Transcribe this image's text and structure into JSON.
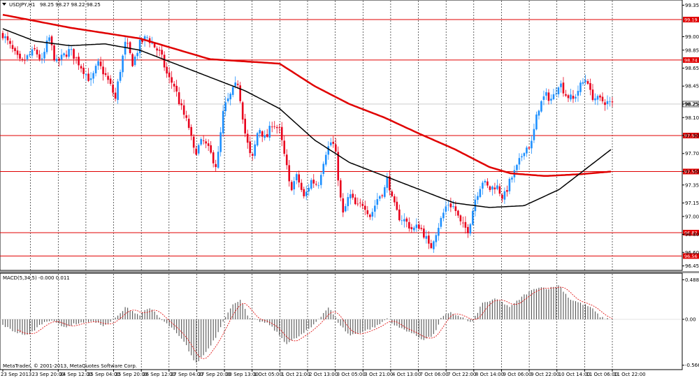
{
  "window": {
    "symbol_label": "USDJPY,H1",
    "ohlc_label": "98.25 98.27 98.22 98.25",
    "indicator_label": "MACD(5,34,5) -0.000 0.011",
    "copyright": "MetaTrader, © 2001-2013, MetaQuotes Software Corp."
  },
  "colors": {
    "background": "#ffffff",
    "bull_candle": "#1e90ff",
    "bear_candle": "#e8001c",
    "sma_slow": "#e00000",
    "sma_fast": "#000000",
    "level_line": "#e00000",
    "macd_hist": "#555555",
    "macd_signal": "#e00000",
    "grid": "#000000"
  },
  "chart_data": [
    {
      "type": "candlestick",
      "symbol": "USDJPY",
      "timeframe": "H1",
      "ylim": [
        96.4,
        99.4
      ],
      "y_ticks": [
        "99.35",
        "99.00",
        "98.85",
        "98.65",
        "98.45",
        "98.25",
        "98.10",
        "97.90",
        "97.70",
        "97.50",
        "97.35",
        "97.15",
        "97.00",
        "96.80",
        "96.60",
        "96.45"
      ],
      "x_ticks": [
        "23 Sep 2013",
        "23 Sep 20:00",
        "24 Sep 12:00",
        "25 Sep 04:00",
        "25 Sep 20:00",
        "26 Sep 12:00",
        "27 Sep 04:00",
        "27 Sep 20:00",
        "30 Sep 13:00",
        "1 Oct 05:00",
        "1 Oct 21:00",
        "2 Oct 13:00",
        "3 Oct 05:00",
        "3 Oct 21:00",
        "4 Oct 13:00",
        "7 Oct 06:00",
        "7 Oct 22:00",
        "8 Oct 14:00",
        "9 Oct 06:00",
        "9 Oct 22:00",
        "10 Oct 14:00",
        "11 Oct 06:00",
        "11 Oct 22:00"
      ],
      "horizontal_levels": [
        {
          "label": "99.19",
          "value": 99.19
        },
        {
          "label": "98.74",
          "value": 98.74
        },
        {
          "label": "97.90",
          "value": 97.9
        },
        {
          "label": "97.50",
          "value": 97.5
        },
        {
          "label": "96.82",
          "value": 96.82
        },
        {
          "label": "96.56",
          "value": 96.56
        }
      ],
      "current_price_label": "98.25",
      "current_price": 98.25,
      "close_path": [
        [
          0,
          99.08
        ],
        [
          10,
          98.95
        ],
        [
          20,
          98.82
        ],
        [
          30,
          98.7
        ],
        [
          40,
          98.78
        ],
        [
          50,
          98.85
        ],
        [
          60,
          98.72
        ],
        [
          70,
          99.0
        ],
        [
          80,
          98.7
        ],
        [
          90,
          98.78
        ],
        [
          100,
          98.85
        ],
        [
          110,
          98.74
        ],
        [
          120,
          98.62
        ],
        [
          130,
          98.5
        ],
        [
          140,
          98.7
        ],
        [
          150,
          98.58
        ],
        [
          160,
          98.42
        ],
        [
          165,
          98.3
        ],
        [
          170,
          98.55
        ],
        [
          180,
          98.95
        ],
        [
          190,
          98.7
        ],
        [
          200,
          98.92
        ],
        [
          210,
          99.0
        ],
        [
          220,
          98.9
        ],
        [
          230,
          98.8
        ],
        [
          240,
          98.55
        ],
        [
          250,
          98.45
        ],
        [
          255,
          98.3
        ],
        [
          262,
          98.15
        ],
        [
          270,
          98.0
        ],
        [
          278,
          97.7
        ],
        [
          290,
          97.85
        ],
        [
          300,
          97.72
        ],
        [
          310,
          97.55
        ],
        [
          320,
          98.2
        ],
        [
          330,
          98.35
        ],
        [
          340,
          98.5
        ],
        [
          345,
          98.25
        ],
        [
          350,
          97.95
        ],
        [
          360,
          97.6
        ],
        [
          370,
          98.0
        ],
        [
          380,
          97.85
        ],
        [
          390,
          98.05
        ],
        [
          400,
          97.95
        ],
        [
          410,
          97.55
        ],
        [
          415,
          97.3
        ],
        [
          425,
          97.45
        ],
        [
          435,
          97.2
        ],
        [
          445,
          97.4
        ],
        [
          455,
          97.35
        ],
        [
          465,
          97.7
        ],
        [
          475,
          97.85
        ],
        [
          480,
          97.7
        ],
        [
          490,
          97.0
        ],
        [
          500,
          97.25
        ],
        [
          510,
          97.1
        ],
        [
          520,
          97.15
        ],
        [
          530,
          97.0
        ],
        [
          540,
          97.2
        ],
        [
          550,
          97.3
        ],
        [
          555,
          97.45
        ],
        [
          560,
          97.2
        ],
        [
          570,
          97.0
        ],
        [
          580,
          96.95
        ],
        [
          590,
          96.85
        ],
        [
          600,
          96.9
        ],
        [
          610,
          96.75
        ],
        [
          615,
          96.62
        ],
        [
          620,
          96.75
        ],
        [
          630,
          96.95
        ],
        [
          640,
          97.15
        ],
        [
          650,
          97.1
        ],
        [
          660,
          96.9
        ],
        [
          670,
          96.85
        ],
        [
          680,
          97.2
        ],
        [
          690,
          97.4
        ],
        [
          700,
          97.3
        ],
        [
          710,
          97.35
        ],
        [
          720,
          97.2
        ],
        [
          730,
          97.4
        ],
        [
          740,
          97.55
        ],
        [
          750,
          97.75
        ],
        [
          760,
          97.8
        ],
        [
          770,
          98.2
        ],
        [
          780,
          98.35
        ],
        [
          790,
          98.3
        ],
        [
          800,
          98.5
        ],
        [
          810,
          98.35
        ],
        [
          820,
          98.3
        ],
        [
          830,
          98.45
        ],
        [
          840,
          98.55
        ],
        [
          845,
          98.35
        ],
        [
          855,
          98.3
        ],
        [
          865,
          98.28
        ],
        [
          875,
          98.25
        ]
      ],
      "sma_fast": [
        [
          0,
          99.1
        ],
        [
          50,
          98.95
        ],
        [
          100,
          98.9
        ],
        [
          150,
          98.92
        ],
        [
          200,
          98.85
        ],
        [
          250,
          98.7
        ],
        [
          300,
          98.55
        ],
        [
          350,
          98.4
        ],
        [
          400,
          98.2
        ],
        [
          450,
          97.85
        ],
        [
          500,
          97.6
        ],
        [
          550,
          97.45
        ],
        [
          600,
          97.3
        ],
        [
          650,
          97.15
        ],
        [
          700,
          97.1
        ],
        [
          750,
          97.12
        ],
        [
          800,
          97.3
        ],
        [
          850,
          97.6
        ],
        [
          875,
          97.75
        ]
      ],
      "sma_slow": [
        [
          0,
          99.25
        ],
        [
          100,
          99.1
        ],
        [
          200,
          98.98
        ],
        [
          300,
          98.75
        ],
        [
          400,
          98.7
        ],
        [
          450,
          98.45
        ],
        [
          500,
          98.25
        ],
        [
          550,
          98.1
        ],
        [
          600,
          97.92
        ],
        [
          650,
          97.75
        ],
        [
          700,
          97.55
        ],
        [
          730,
          97.48
        ],
        [
          780,
          97.45
        ],
        [
          830,
          97.47
        ],
        [
          875,
          97.5
        ]
      ]
    },
    {
      "type": "bar",
      "name": "MACD(5,34,5)",
      "ylim": [
        -0.62,
        0.56
      ],
      "y_ticks": [
        "0.488",
        "0.00",
        "-0.566"
      ],
      "histogram_path": [
        [
          0,
          -0.05
        ],
        [
          20,
          -0.15
        ],
        [
          40,
          -0.2
        ],
        [
          60,
          -0.05
        ],
        [
          75,
          0.0
        ],
        [
          90,
          -0.1
        ],
        [
          110,
          -0.05
        ],
        [
          130,
          -0.02
        ],
        [
          150,
          -0.08
        ],
        [
          170,
          0.05
        ],
        [
          180,
          0.15
        ],
        [
          190,
          0.1
        ],
        [
          200,
          0.05
        ],
        [
          210,
          0.14
        ],
        [
          220,
          0.1
        ],
        [
          230,
          0.0
        ],
        [
          245,
          -0.1
        ],
        [
          265,
          -0.3
        ],
        [
          280,
          -0.55
        ],
        [
          295,
          -0.4
        ],
        [
          310,
          -0.2
        ],
        [
          320,
          0.0
        ],
        [
          335,
          0.2
        ],
        [
          345,
          0.25
        ],
        [
          355,
          0.02
        ],
        [
          370,
          -0.02
        ],
        [
          385,
          -0.06
        ],
        [
          400,
          -0.2
        ],
        [
          410,
          -0.3
        ],
        [
          420,
          -0.25
        ],
        [
          430,
          -0.2
        ],
        [
          445,
          -0.1
        ],
        [
          460,
          0.05
        ],
        [
          470,
          0.15
        ],
        [
          485,
          -0.05
        ],
        [
          500,
          -0.2
        ],
        [
          520,
          -0.15
        ],
        [
          540,
          -0.08
        ],
        [
          555,
          0.02
        ],
        [
          565,
          -0.08
        ],
        [
          585,
          -0.15
        ],
        [
          605,
          -0.25
        ],
        [
          620,
          -0.2
        ],
        [
          632,
          0.03
        ],
        [
          645,
          0.08
        ],
        [
          660,
          0.03
        ],
        [
          675,
          -0.05
        ],
        [
          690,
          0.2
        ],
        [
          710,
          0.25
        ],
        [
          730,
          0.15
        ],
        [
          750,
          0.3
        ],
        [
          770,
          0.4
        ],
        [
          785,
          0.38
        ],
        [
          800,
          0.42
        ],
        [
          815,
          0.25
        ],
        [
          830,
          0.2
        ],
        [
          845,
          0.15
        ],
        [
          860,
          0.02
        ],
        [
          875,
          0.0
        ]
      ],
      "signal_lag": 6
    }
  ]
}
